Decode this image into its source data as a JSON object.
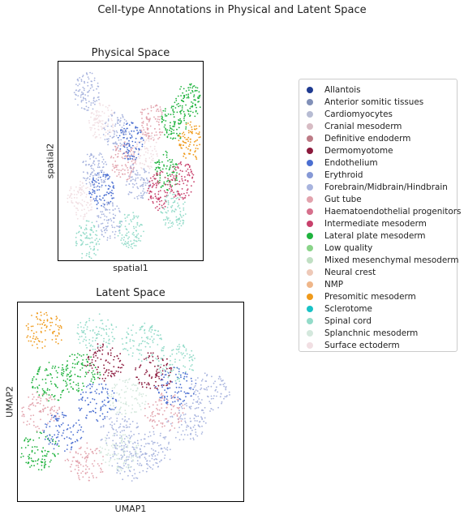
{
  "figure": {
    "suptitle": "Cell-type Annotations in Physical and Latent Space"
  },
  "chart_data": [
    {
      "type": "scatter",
      "title": "Physical Space",
      "xlabel": "spatial1",
      "ylabel": "spatial2",
      "ticks": "none",
      "grid": false,
      "series": [
        {
          "name": "Forebrain/Midbrain/Hindbrain",
          "color": "#a8b4de",
          "regions": [
            [
              0.2,
              0.15
            ],
            [
              0.4,
              0.35
            ],
            [
              0.25,
              0.55
            ],
            [
              0.55,
              0.6
            ],
            [
              0.35,
              0.8
            ]
          ]
        },
        {
          "name": "Lateral plate mesoderm",
          "color": "#1fb33e",
          "regions": [
            [
              0.8,
              0.3
            ],
            [
              0.75,
              0.55
            ],
            [
              0.9,
              0.2
            ]
          ]
        },
        {
          "name": "Spinal cord",
          "color": "#93dbc9",
          "regions": [
            [
              0.5,
              0.85
            ],
            [
              0.8,
              0.75
            ],
            [
              0.2,
              0.9
            ]
          ]
        },
        {
          "name": "Presomitic mesoderm",
          "color": "#ef9a1b",
          "regions": [
            [
              0.92,
              0.4
            ]
          ]
        },
        {
          "name": "Surface ectoderm",
          "color": "#f1dfe3",
          "regions": [
            [
              0.3,
              0.3
            ],
            [
              0.6,
              0.45
            ],
            [
              0.15,
              0.7
            ]
          ]
        },
        {
          "name": "Intermediate mesoderm",
          "color": "#c8416c",
          "regions": [
            [
              0.7,
              0.65
            ],
            [
              0.85,
              0.6
            ]
          ]
        },
        {
          "name": "Gut tube",
          "color": "#e2a3ad",
          "regions": [
            [
              0.45,
              0.5
            ],
            [
              0.65,
              0.3
            ]
          ]
        },
        {
          "name": "Endothelium",
          "color": "#4b6fd1",
          "regions": [
            [
              0.5,
              0.4
            ],
            [
              0.3,
              0.65
            ]
          ]
        }
      ]
    },
    {
      "type": "scatter",
      "title": "Latent Space",
      "xlabel": "UMAP1",
      "ylabel": "UMAP2",
      "ticks": "none",
      "grid": false,
      "series": [
        {
          "name": "Forebrain/Midbrain/Hindbrain",
          "color": "#a8b4de",
          "regions": [
            [
              0.75,
              0.6
            ],
            [
              0.6,
              0.75
            ],
            [
              0.45,
              0.65
            ],
            [
              0.85,
              0.45
            ],
            [
              0.5,
              0.8
            ]
          ]
        },
        {
          "name": "Lateral plate mesoderm",
          "color": "#1fb33e",
          "regions": [
            [
              0.15,
              0.4
            ],
            [
              0.1,
              0.75
            ],
            [
              0.28,
              0.35
            ]
          ]
        },
        {
          "name": "Spinal cord",
          "color": "#93dbc9",
          "regions": [
            [
              0.55,
              0.2
            ],
            [
              0.35,
              0.15
            ],
            [
              0.7,
              0.3
            ]
          ]
        },
        {
          "name": "Presomitic mesoderm",
          "color": "#ef9a1b",
          "regions": [
            [
              0.12,
              0.14
            ]
          ]
        },
        {
          "name": "Dermomyotome",
          "color": "#8b1a3d",
          "regions": [
            [
              0.38,
              0.3
            ],
            [
              0.6,
              0.35
            ]
          ]
        },
        {
          "name": "Gut tube",
          "color": "#e2a3ad",
          "regions": [
            [
              0.1,
              0.55
            ],
            [
              0.65,
              0.55
            ],
            [
              0.3,
              0.8
            ]
          ]
        },
        {
          "name": "Endothelium",
          "color": "#4b6fd1",
          "regions": [
            [
              0.35,
              0.5
            ],
            [
              0.7,
              0.42
            ],
            [
              0.2,
              0.65
            ]
          ]
        },
        {
          "name": "Splanchnic mesoderm",
          "color": "#d4e8dd",
          "regions": [
            [
              0.48,
              0.48
            ],
            [
              0.45,
              0.75
            ]
          ]
        }
      ]
    }
  ],
  "legend": {
    "placement": "right",
    "items": [
      {
        "label": "Allantois",
        "color": "#1f3b91"
      },
      {
        "label": "Anterior somitic tissues",
        "color": "#8190b8"
      },
      {
        "label": "Cardiomyocytes",
        "color": "#b7bcd3"
      },
      {
        "label": "Cranial mesoderm",
        "color": "#d7bcc4"
      },
      {
        "label": "Definitive endoderm",
        "color": "#bd7b86"
      },
      {
        "label": "Dermomyotome",
        "color": "#8b1a3d"
      },
      {
        "label": "Endothelium",
        "color": "#4b6fd1"
      },
      {
        "label": "Erythroid",
        "color": "#8699d6"
      },
      {
        "label": "Forebrain/Midbrain/Hindbrain",
        "color": "#a8b4de"
      },
      {
        "label": "Gut tube",
        "color": "#e2a3ad"
      },
      {
        "label": "Haematoendothelial progenitors",
        "color": "#d6708c"
      },
      {
        "label": "Intermediate mesoderm",
        "color": "#c8416c"
      },
      {
        "label": "Lateral plate mesoderm",
        "color": "#1fb33e"
      },
      {
        "label": "Low quality",
        "color": "#8ad489"
      },
      {
        "label": "Mixed mesenchymal mesoderm",
        "color": "#c0dfc3"
      },
      {
        "label": "Neural crest",
        "color": "#eec9b8"
      },
      {
        "label": "NMP",
        "color": "#efb689"
      },
      {
        "label": "Presomitic mesoderm",
        "color": "#ef9a1b"
      },
      {
        "label": "Sclerotome",
        "color": "#19c2c6"
      },
      {
        "label": "Spinal cord",
        "color": "#93dbc9"
      },
      {
        "label": "Splanchnic mesoderm",
        "color": "#d4e8dd"
      },
      {
        "label": "Surface ectoderm",
        "color": "#f1dfe3"
      }
    ]
  }
}
